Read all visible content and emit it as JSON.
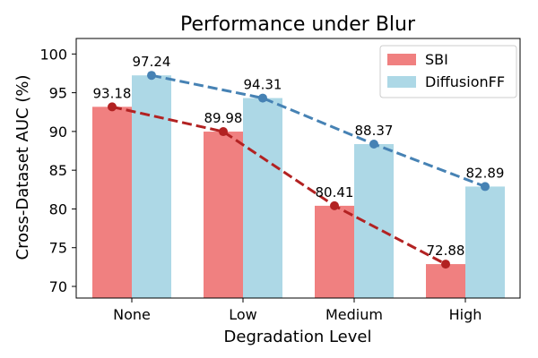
{
  "chart_data": {
    "type": "bar",
    "title": "Performance under Blur",
    "xlabel": "Degradation Level",
    "ylabel": "Cross-Dataset AUC (%)",
    "categories": [
      "None",
      "Low",
      "Medium",
      "High"
    ],
    "ylim": [
      68.5,
      102
    ],
    "yticks": [
      70,
      75,
      80,
      85,
      90,
      95,
      100
    ],
    "grid": false,
    "legend_position": "top-right",
    "series": [
      {
        "name": "SBI",
        "values": [
          93.18,
          89.98,
          80.41,
          72.88
        ],
        "labels": [
          "93.18",
          "89.98",
          "80.41",
          "72.88"
        ],
        "bar_color": "#f08080",
        "line_color": "#b22222",
        "line_style": "dashed"
      },
      {
        "name": "DiffusionFF",
        "values": [
          97.24,
          94.31,
          88.37,
          82.89
        ],
        "labels": [
          "97.24",
          "94.31",
          "88.37",
          "82.89"
        ],
        "bar_color": "#add8e6",
        "line_color": "#4682b4",
        "line_style": "dashed"
      }
    ]
  }
}
